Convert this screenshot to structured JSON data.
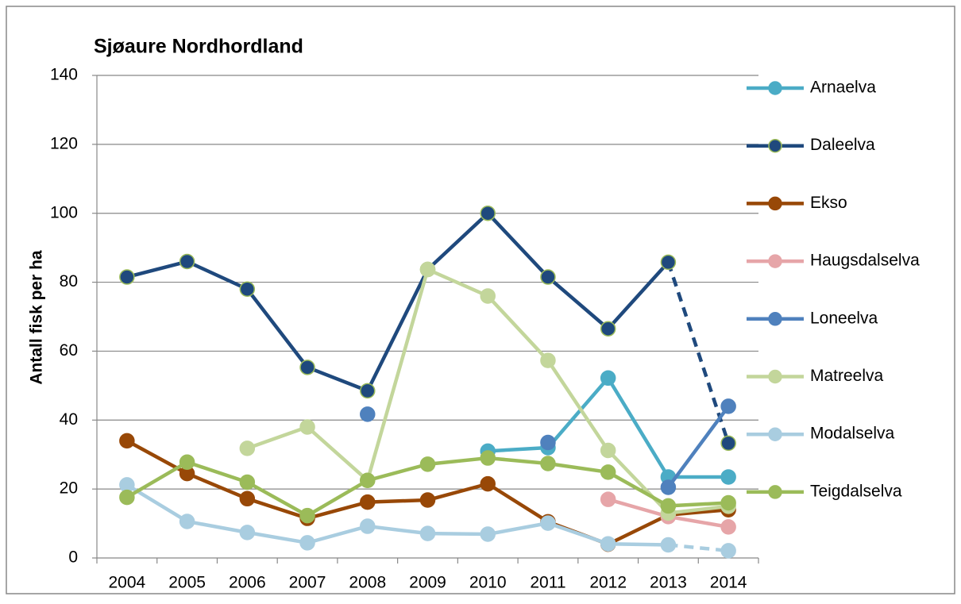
{
  "chart_data": {
    "type": "line",
    "title": "Sjøaure Nordhordland",
    "y_label": "Antall fisk per ha",
    "categories": [
      "2004",
      "2005",
      "2006",
      "2007",
      "2008",
      "2009",
      "2010",
      "2011",
      "2012",
      "2013",
      "2014"
    ],
    "ylim": [
      0,
      140
    ],
    "yticks": [
      0,
      20,
      40,
      60,
      80,
      100,
      120,
      140
    ],
    "grid": true,
    "legend": "right",
    "series": [
      {
        "name": "Arnaelva",
        "color": "#4bacc6",
        "values": [
          null,
          null,
          null,
          null,
          null,
          null,
          31,
          32,
          52.2,
          23.5,
          23.5
        ]
      },
      {
        "name": "Daleelva",
        "color": "#1f497d",
        "marker_edge": "#9bbb59",
        "dashed_last_segment": true,
        "values": [
          81.5,
          86,
          78,
          55.3,
          48.5,
          83.7,
          100,
          81.5,
          66.5,
          85.8,
          33.3
        ]
      },
      {
        "name": "Ekso",
        "color": "#984807",
        "values": [
          34,
          24.5,
          17.2,
          11.5,
          16.2,
          16.8,
          21.5,
          10.5,
          4,
          12.5,
          14
        ]
      },
      {
        "name": "Haugsdalselva",
        "color": "#e6a5a8",
        "values": [
          null,
          null,
          null,
          null,
          null,
          null,
          null,
          null,
          17,
          12,
          9
        ]
      },
      {
        "name": "Loneelva",
        "color": "#4f81bd",
        "values": [
          null,
          null,
          null,
          null,
          41.7,
          null,
          null,
          33.5,
          null,
          20.5,
          44
        ]
      },
      {
        "name": "Matreelva",
        "color": "#c3d69b",
        "values": [
          null,
          null,
          31.8,
          38,
          22.5,
          83.7,
          76,
          57.3,
          31.2,
          13,
          15
        ]
      },
      {
        "name": "Modalselva",
        "color": "#a9cde0",
        "dashed_last_segment": true,
        "values": [
          21.2,
          10.6,
          7.4,
          4.4,
          9.2,
          7.1,
          6.9,
          10.1,
          4.1,
          3.8,
          2.1
        ]
      },
      {
        "name": "Teigdalselva",
        "color": "#9bbb59",
        "values": [
          17.6,
          27.8,
          22,
          12.3,
          22.5,
          27.2,
          29,
          27.4,
          24.9,
          15.1,
          16
        ]
      }
    ]
  }
}
